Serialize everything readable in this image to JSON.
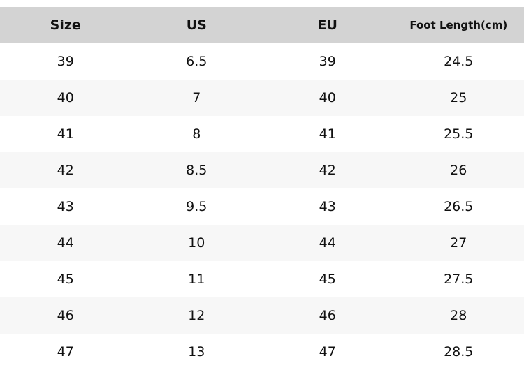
{
  "table": {
    "header": [
      "Size",
      "US",
      "EU",
      "Foot Length(cm)"
    ],
    "rows": [
      [
        "39",
        "6.5",
        "39",
        "24.5"
      ],
      [
        "40",
        "7",
        "40",
        "25"
      ],
      [
        "41",
        "8",
        "41",
        "25.5"
      ],
      [
        "42",
        "8.5",
        "42",
        "26"
      ],
      [
        "43",
        "9.5",
        "43",
        "26.5"
      ],
      [
        "44",
        "10",
        "44",
        "27"
      ],
      [
        "45",
        "11",
        "45",
        "27.5"
      ],
      [
        "46",
        "12",
        "46",
        "28"
      ],
      [
        "47",
        "13",
        "47",
        "28.5"
      ]
    ]
  }
}
